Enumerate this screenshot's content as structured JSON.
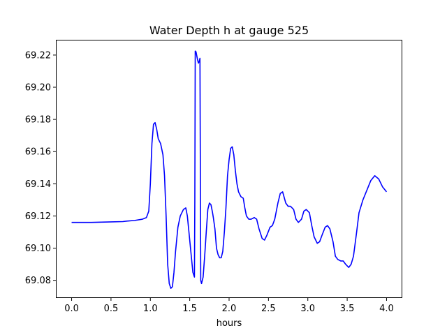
{
  "chart_data": {
    "type": "line",
    "title": "Water Depth h at gauge 525",
    "xlabel": "hours",
    "ylabel": "",
    "xlim": [
      -0.2,
      4.2
    ],
    "ylim": [
      69.069,
      69.2295
    ],
    "grid": false,
    "legend": "none",
    "x_ticks": [
      0.0,
      0.5,
      1.0,
      1.5,
      2.0,
      2.5,
      3.0,
      3.5,
      4.0
    ],
    "x_tick_labels": [
      "0.0",
      "0.5",
      "1.0",
      "1.5",
      "2.0",
      "2.5",
      "3.0",
      "3.5",
      "4.0"
    ],
    "y_ticks": [
      69.08,
      69.1,
      69.12,
      69.14,
      69.16,
      69.18,
      69.2,
      69.22
    ],
    "y_tick_labels": [
      "69.08",
      "69.10",
      "69.12",
      "69.14",
      "69.16",
      "69.18",
      "69.20",
      "69.22"
    ],
    "series": [
      {
        "color": "#0000ff",
        "x": [
          0.0,
          0.25,
          0.5,
          0.65,
          0.7,
          0.8,
          0.9,
          0.95,
          0.98,
          1.0,
          1.02,
          1.04,
          1.06,
          1.08,
          1.1,
          1.13,
          1.16,
          1.18,
          1.2,
          1.22,
          1.24,
          1.26,
          1.28,
          1.3,
          1.32,
          1.35,
          1.38,
          1.42,
          1.45,
          1.47,
          1.49,
          1.52,
          1.54,
          1.56,
          1.565,
          1.57,
          1.58,
          1.6,
          1.61,
          1.62,
          1.63,
          1.635,
          1.64,
          1.65,
          1.67,
          1.69,
          1.71,
          1.73,
          1.75,
          1.77,
          1.79,
          1.8,
          1.82,
          1.84,
          1.86,
          1.88,
          1.9,
          1.92,
          1.94,
          1.96,
          1.98,
          2.0,
          2.02,
          2.04,
          2.06,
          2.08,
          2.1,
          2.12,
          2.15,
          2.18,
          2.2,
          2.22,
          2.25,
          2.28,
          2.32,
          2.35,
          2.38,
          2.42,
          2.45,
          2.48,
          2.52,
          2.55,
          2.58,
          2.62,
          2.65,
          2.68,
          2.72,
          2.75,
          2.78,
          2.82,
          2.85,
          2.88,
          2.92,
          2.95,
          2.98,
          3.02,
          3.05,
          3.08,
          3.12,
          3.15,
          3.18,
          3.22,
          3.25,
          3.28,
          3.32,
          3.35,
          3.38,
          3.42,
          3.45,
          3.48,
          3.5,
          3.52,
          3.55,
          3.58,
          3.62,
          3.65,
          3.7,
          3.75,
          3.8,
          3.85,
          3.9,
          3.95,
          4.0
        ],
        "y": [
          69.116,
          69.116,
          69.1163,
          69.1165,
          69.1168,
          69.1172,
          69.118,
          69.119,
          69.123,
          69.14,
          69.165,
          69.177,
          69.178,
          69.174,
          69.168,
          69.165,
          69.158,
          69.145,
          69.12,
          69.09,
          69.078,
          69.075,
          69.076,
          69.085,
          69.098,
          69.113,
          69.12,
          69.124,
          69.125,
          69.12,
          69.11,
          69.095,
          69.085,
          69.082,
          69.13,
          69.2225,
          69.222,
          69.217,
          69.215,
          69.216,
          69.218,
          69.15,
          69.08,
          69.078,
          69.082,
          69.095,
          69.11,
          69.124,
          69.128,
          69.127,
          69.122,
          69.119,
          69.112,
          69.1,
          69.096,
          69.094,
          69.094,
          69.098,
          69.11,
          69.125,
          69.145,
          69.155,
          69.162,
          69.163,
          69.158,
          69.148,
          69.14,
          69.135,
          69.132,
          69.131,
          69.125,
          69.12,
          69.118,
          69.118,
          69.119,
          69.118,
          69.112,
          69.106,
          69.105,
          69.108,
          69.113,
          69.114,
          69.118,
          69.128,
          69.134,
          69.135,
          69.128,
          69.126,
          69.126,
          69.124,
          69.118,
          69.116,
          69.118,
          69.123,
          69.124,
          69.122,
          69.114,
          69.107,
          69.103,
          69.104,
          69.108,
          69.113,
          69.114,
          69.112,
          69.104,
          69.095,
          69.093,
          69.092,
          69.092,
          69.09,
          69.089,
          69.088,
          69.09,
          69.095,
          69.11,
          69.122,
          69.13,
          69.136,
          69.142,
          69.145,
          69.143,
          69.138,
          69.135
        ]
      }
    ]
  }
}
